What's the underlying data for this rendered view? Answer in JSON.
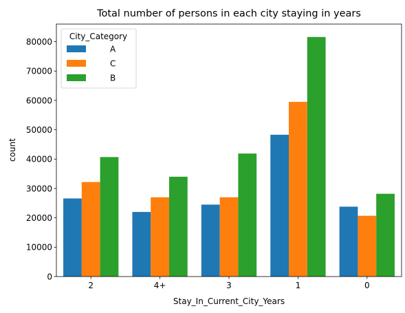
{
  "chart_data": {
    "type": "bar",
    "title": "Total number of persons in each city staying in years",
    "xlabel": "Stay_In_Current_City_Years",
    "ylabel": "count",
    "categories": [
      "2",
      "4+",
      "3",
      "1",
      "0"
    ],
    "series": [
      {
        "name": "A",
        "color": "#1f77b4",
        "values": [
          26600,
          22000,
          24500,
          48300,
          23800
        ]
      },
      {
        "name": "C",
        "color": "#ff7f0e",
        "values": [
          32200,
          27000,
          27000,
          59500,
          20700
        ]
      },
      {
        "name": "B",
        "color": "#2ca02c",
        "values": [
          40700,
          34000,
          41900,
          81600,
          28200
        ]
      }
    ],
    "ylim": [
      0,
      86000
    ],
    "yticks": [
      0,
      10000,
      20000,
      30000,
      40000,
      50000,
      60000,
      70000,
      80000
    ],
    "legend": {
      "title": "City_Category",
      "placement": "top-left"
    },
    "grid": false
  }
}
